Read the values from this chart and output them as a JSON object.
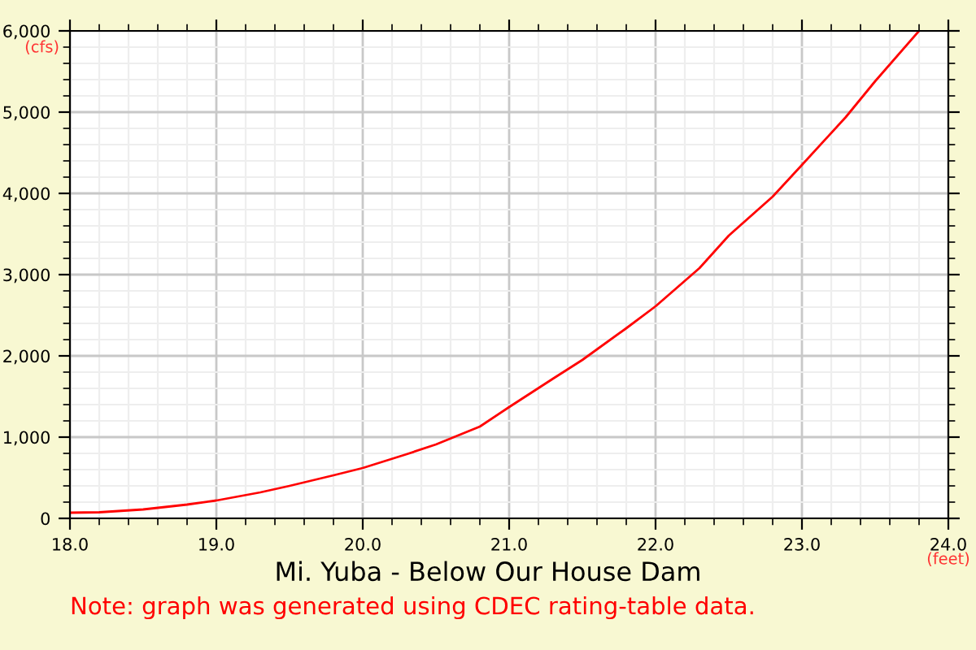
{
  "chart_data": {
    "type": "line",
    "title": "Mi. Yuba - Below Our House Dam",
    "xlabel": "(feet)",
    "ylabel": "(cfs)",
    "x": [
      18.0,
      18.2,
      18.5,
      18.8,
      19.0,
      19.3,
      19.5,
      19.8,
      20.0,
      20.3,
      20.5,
      20.8,
      21.0,
      21.3,
      21.5,
      21.8,
      22.0,
      22.3,
      22.5,
      22.8,
      23.0,
      23.3,
      23.5,
      23.8
    ],
    "series": [
      {
        "color": "#ff0000",
        "values": [
          70,
          75,
          110,
          170,
          220,
          320,
          400,
          530,
          620,
          790,
          910,
          1130,
          1370,
          1720,
          1950,
          2340,
          2610,
          3080,
          3480,
          3960,
          4350,
          4940,
          5380,
          6000
        ]
      }
    ],
    "xlim": [
      18.0,
      24.0
    ],
    "ylim": [
      0,
      6000
    ],
    "xticks": [
      {
        "value": 18,
        "label": "18.0"
      },
      {
        "value": 19,
        "label": "19.0"
      },
      {
        "value": 20,
        "label": "20.0"
      },
      {
        "value": 21,
        "label": "21.0"
      },
      {
        "value": 22,
        "label": "22.0"
      },
      {
        "value": 23,
        "label": "23.0"
      },
      {
        "value": 24,
        "label": "24.0"
      }
    ],
    "yticks": [
      0,
      {
        "value": 1000,
        "label": "1,000"
      },
      {
        "value": 2000,
        "label": "2,000"
      },
      {
        "value": 3000,
        "label": "3,000"
      },
      {
        "value": 4000,
        "label": "4,000"
      },
      {
        "value": 5000,
        "label": "5,000"
      },
      {
        "value": 6000,
        "label": "6,000"
      }
    ],
    "grid": true,
    "marker": "none",
    "line_style": "solid",
    "annotations": [
      "Note: graph was generated using CDEC rating-table data."
    ]
  }
}
